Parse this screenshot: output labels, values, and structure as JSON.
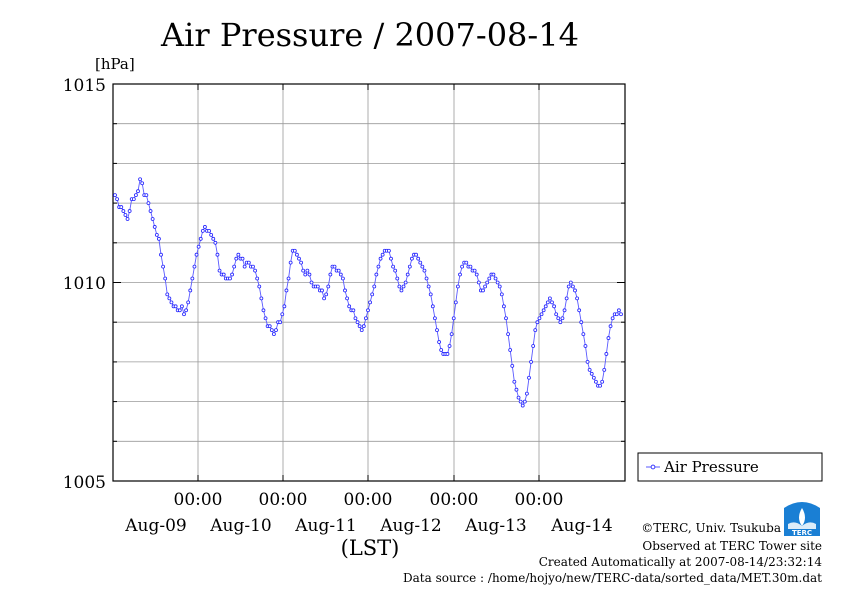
{
  "chart_data": {
    "type": "line",
    "title": "Air Pressure / 2007-08-14",
    "ylabel": "[hPa]",
    "xlabel": "(LST)",
    "ylim": [
      1005,
      1015
    ],
    "y_ticks": [
      "1005",
      "1010",
      "1015"
    ],
    "x_tick_time_labels": [
      "00:00",
      "00:00",
      "00:00",
      "00:00",
      "00:00"
    ],
    "x_day_labels": [
      "Aug-09",
      "Aug-10",
      "Aug-11",
      "Aug-12",
      "Aug-13",
      "Aug-14"
    ],
    "grid": true,
    "legend_position": "right",
    "series": [
      {
        "name": "Air Pressure",
        "color": "#2222ff",
        "marker": "circle",
        "time_step": "30min",
        "x_start": "2007-08-09 00:00",
        "values": [
          1012.2,
          1012.1,
          1011.9,
          1011.9,
          1011.8,
          1011.7,
          1011.6,
          1011.8,
          1012.1,
          1012.1,
          1012.2,
          1012.3,
          1012.6,
          1012.5,
          1012.2,
          1012.2,
          1012.0,
          1011.8,
          1011.6,
          1011.4,
          1011.2,
          1011.1,
          1010.7,
          1010.4,
          1010.1,
          1009.7,
          1009.6,
          1009.5,
          1009.4,
          1009.4,
          1009.3,
          1009.3,
          1009.4,
          1009.2,
          1009.3,
          1009.5,
          1009.8,
          1010.1,
          1010.4,
          1010.7,
          1010.9,
          1011.1,
          1011.3,
          1011.4,
          1011.3,
          1011.3,
          1011.2,
          1011.1,
          1011.0,
          1010.7,
          1010.3,
          1010.2,
          1010.2,
          1010.1,
          1010.1,
          1010.1,
          1010.2,
          1010.4,
          1010.6,
          1010.7,
          1010.6,
          1010.6,
          1010.4,
          1010.5,
          1010.5,
          1010.4,
          1010.4,
          1010.3,
          1010.1,
          1009.9,
          1009.6,
          1009.3,
          1009.1,
          1008.9,
          1008.9,
          1008.8,
          1008.7,
          1008.8,
          1009.0,
          1009.0,
          1009.2,
          1009.4,
          1009.8,
          1010.1,
          1010.5,
          1010.8,
          1010.8,
          1010.7,
          1010.6,
          1010.5,
          1010.3,
          1010.2,
          1010.3,
          1010.2,
          1010.0,
          1009.9,
          1009.9,
          1009.9,
          1009.8,
          1009.8,
          1009.6,
          1009.7,
          1009.9,
          1010.2,
          1010.4,
          1010.4,
          1010.3,
          1010.3,
          1010.2,
          1010.1,
          1009.8,
          1009.6,
          1009.4,
          1009.3,
          1009.3,
          1009.1,
          1009.0,
          1008.9,
          1008.8,
          1008.9,
          1009.1,
          1009.3,
          1009.5,
          1009.7,
          1009.9,
          1010.2,
          1010.4,
          1010.6,
          1010.7,
          1010.8,
          1010.8,
          1010.8,
          1010.6,
          1010.4,
          1010.3,
          1010.1,
          1009.9,
          1009.8,
          1009.9,
          1010.0,
          1010.2,
          1010.4,
          1010.6,
          1010.7,
          1010.7,
          1010.6,
          1010.5,
          1010.4,
          1010.3,
          1010.1,
          1009.9,
          1009.7,
          1009.4,
          1009.1,
          1008.8,
          1008.5,
          1008.3,
          1008.2,
          1008.2,
          1008.2,
          1008.4,
          1008.7,
          1009.1,
          1009.5,
          1009.9,
          1010.2,
          1010.4,
          1010.5,
          1010.5,
          1010.4,
          1010.4,
          1010.3,
          1010.3,
          1010.2,
          1010.0,
          1009.8,
          1009.8,
          1009.9,
          1010.0,
          1010.1,
          1010.2,
          1010.2,
          1010.1,
          1010.0,
          1009.9,
          1009.7,
          1009.4,
          1009.1,
          1008.7,
          1008.3,
          1007.9,
          1007.5,
          1007.3,
          1007.1,
          1007.0,
          1006.9,
          1007.0,
          1007.2,
          1007.6,
          1008.0,
          1008.4,
          1008.8,
          1009.0,
          1009.1,
          1009.2,
          1009.3,
          1009.4,
          1009.5,
          1009.6,
          1009.5,
          1009.4,
          1009.2,
          1009.1,
          1009.0,
          1009.1,
          1009.3,
          1009.6,
          1009.9,
          1010.0,
          1009.9,
          1009.8,
          1009.6,
          1009.3,
          1009.0,
          1008.7,
          1008.4,
          1008.0,
          1007.8,
          1007.7,
          1007.6,
          1007.5,
          1007.4,
          1007.4,
          1007.5,
          1007.8,
          1008.2,
          1008.6,
          1008.9,
          1009.1,
          1009.2,
          1009.2,
          1009.3,
          1009.2
        ]
      }
    ]
  },
  "legend": {
    "label": "Air Pressure"
  },
  "footer": {
    "copyright": "©TERC, Univ. Tsukuba",
    "observed": "Observed at TERC Tower site",
    "created": "Created Automatically at 2007-08-14/23:32:14",
    "source": "Data source : /home/hojyo/new/TERC-data/sorted_data/MET.30m.dat"
  },
  "logo": {
    "icon": "terc-logo-icon",
    "text": "TERC",
    "color": "#1a7fd4"
  }
}
